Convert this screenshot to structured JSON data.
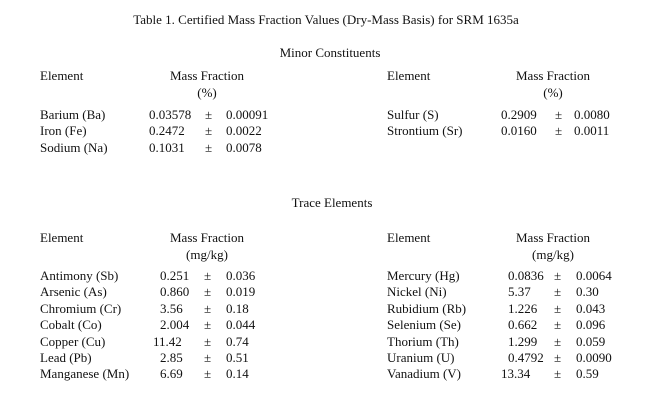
{
  "title": "Table 1.  Certified Mass Fraction Values (Dry-Mass Basis) for SRM 1635a",
  "minor": {
    "heading": "Minor Constituents",
    "col_element": "Element",
    "col_mass": "Mass Fraction",
    "unit": "(%)",
    "left": [
      {
        "element": "Barium (Ba)",
        "value": "0.03578",
        "pm": "±",
        "unc": "0.00091"
      },
      {
        "element": "Iron (Fe)",
        "value": "0.2472",
        "pm": "±",
        "unc": "0.0022"
      },
      {
        "element": "Sodium (Na)",
        "value": "0.1031",
        "pm": "±",
        "unc": "0.0078"
      }
    ],
    "right": [
      {
        "element": "Sulfur (S)",
        "value": "0.2909",
        "pm": "±",
        "unc": "0.0080"
      },
      {
        "element": "Strontium (Sr)",
        "value": "0.0160",
        "pm": "±",
        "unc": "0.0011"
      }
    ]
  },
  "trace": {
    "heading": "Trace Elements",
    "col_element": "Element",
    "col_mass": "Mass Fraction",
    "unit": "(mg/kg)",
    "left": [
      {
        "element": "Antimony (Sb)",
        "value": "0.251",
        "pm": "±",
        "unc": "0.036"
      },
      {
        "element": "Arsenic (As)",
        "value": "0.860",
        "pm": "±",
        "unc": "0.019"
      },
      {
        "element": "Chromium (Cr)",
        "value": "3.56",
        "pm": "±",
        "unc": "0.18"
      },
      {
        "element": "Cobalt (Co)",
        "value": "2.004",
        "pm": "±",
        "unc": "0.044"
      },
      {
        "element": "Copper (Cu)",
        "value": "11.42",
        "pm": "±",
        "unc": "0.74"
      },
      {
        "element": "Lead (Pb)",
        "value": "2.85",
        "pm": "±",
        "unc": "0.51"
      },
      {
        "element": "Manganese (Mn)",
        "value": "6.69",
        "pm": "±",
        "unc": "0.14"
      }
    ],
    "right": [
      {
        "element": "Mercury (Hg)",
        "value": "0.0836",
        "pm": "±",
        "unc": "0.0064"
      },
      {
        "element": "Nickel (Ni)",
        "value": "5.37",
        "pm": "±",
        "unc": "0.30"
      },
      {
        "element": "Rubidium (Rb)",
        "value": "1.226",
        "pm": "±",
        "unc": "0.043"
      },
      {
        "element": "Selenium (Se)",
        "value": "0.662",
        "pm": "±",
        "unc": "0.096"
      },
      {
        "element": "Thorium (Th)",
        "value": "1.299",
        "pm": "±",
        "unc": "0.059"
      },
      {
        "element": "Uranium (U)",
        "value": "0.4792",
        "pm": "±",
        "unc": "0.0090"
      },
      {
        "element": "Vanadium (V)",
        "value": "13.34",
        "pm": "±",
        "unc": "0.59"
      }
    ]
  }
}
